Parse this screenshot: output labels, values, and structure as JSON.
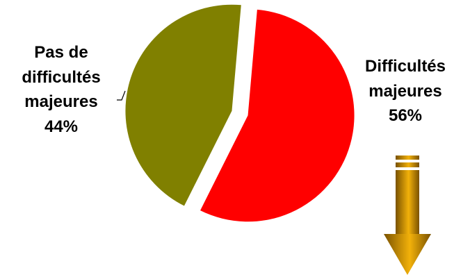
{
  "chart_data": {
    "type": "pie",
    "exploded": true,
    "start_angle_deg": 5,
    "direction": "clockwise",
    "slices": [
      {
        "label": "Difficultés majeures",
        "value": 56,
        "value_label": "56%",
        "label_lines": [
          "Difficultés",
          "majeures",
          "56%"
        ],
        "color": "#ff0000"
      },
      {
        "label": "Pas de difficultés majeures",
        "value": 44,
        "value_label": "44%",
        "label_lines": [
          "Pas de",
          "difficultés",
          "majeures",
          "44%"
        ],
        "color": "#808000"
      }
    ],
    "legend": "none"
  },
  "decoration": {
    "arrow_icon": "down-arrow-icon",
    "arrow_colors": [
      "#f2b10a",
      "#7a5200"
    ]
  }
}
